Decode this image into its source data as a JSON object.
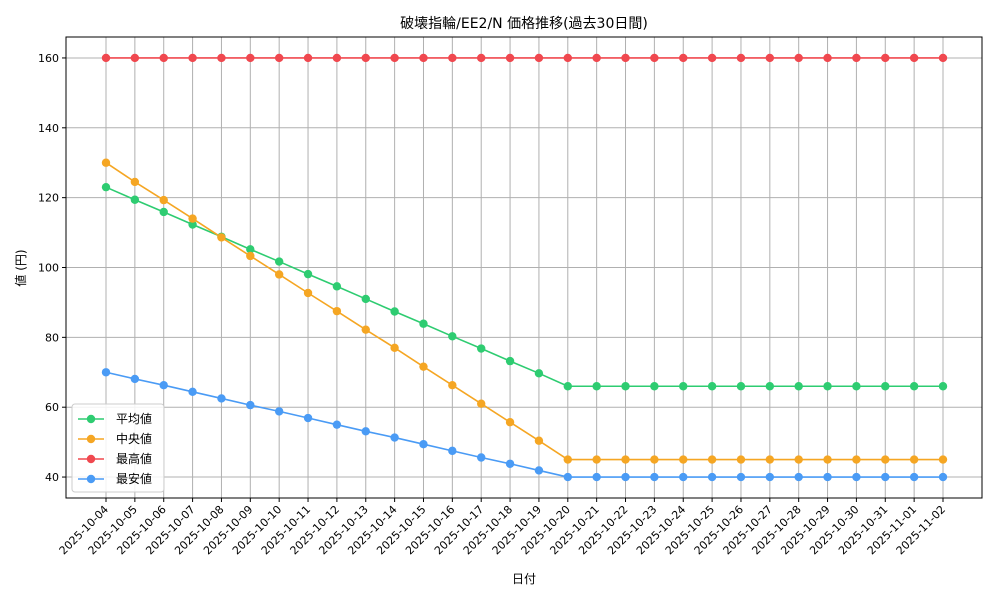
{
  "chart_data": {
    "type": "line",
    "title": "破壊指輪/EE2/N 価格推移(過去30日間)",
    "xlabel": "日付",
    "ylabel": "値 (円)",
    "ylim": [
      34,
      166
    ],
    "yticks": [
      40,
      60,
      80,
      100,
      120,
      140,
      160
    ],
    "grid": true,
    "legend_position": "bottom-left",
    "categories": [
      "2025-10-04",
      "2025-10-05",
      "2025-10-06",
      "2025-10-07",
      "2025-10-08",
      "2025-10-09",
      "2025-10-10",
      "2025-10-11",
      "2025-10-12",
      "2025-10-13",
      "2025-10-14",
      "2025-10-15",
      "2025-10-16",
      "2025-10-17",
      "2025-10-18",
      "2025-10-19",
      "2025-10-20",
      "2025-10-21",
      "2025-10-22",
      "2025-10-23",
      "2025-10-24",
      "2025-10-25",
      "2025-10-26",
      "2025-10-27",
      "2025-10-28",
      "2025-10-29",
      "2025-10-30",
      "2025-10-31",
      "2025-11-01",
      "2025-11-02"
    ],
    "series": [
      {
        "name": "平均値",
        "color": "#2ecc71",
        "values": [
          123,
          119.4,
          115.9,
          112.3,
          108.8,
          105.2,
          101.7,
          98.1,
          94.6,
          91,
          87.4,
          83.9,
          80.3,
          76.8,
          73.2,
          69.7,
          66,
          66,
          66,
          66,
          66,
          66,
          66,
          66,
          66,
          66,
          66,
          66,
          66,
          66
        ]
      },
      {
        "name": "中央値",
        "color": "#f5a623",
        "values": [
          130,
          124.5,
          119.3,
          114,
          108.6,
          103.3,
          98,
          92.7,
          87.5,
          82.2,
          77,
          71.6,
          66.3,
          61,
          55.7,
          50.4,
          45,
          45,
          45,
          45,
          45,
          45,
          45,
          45,
          45,
          45,
          45,
          45,
          45,
          45
        ]
      },
      {
        "name": "最高値",
        "color": "#f0484f",
        "values": [
          160,
          160,
          160,
          160,
          160,
          160,
          160,
          160,
          160,
          160,
          160,
          160,
          160,
          160,
          160,
          160,
          160,
          160,
          160,
          160,
          160,
          160,
          160,
          160,
          160,
          160,
          160,
          160,
          160,
          160
        ]
      },
      {
        "name": "最安値",
        "color": "#4a9bf5",
        "values": [
          70,
          68.1,
          66.3,
          64.4,
          62.5,
          60.6,
          58.8,
          56.9,
          55,
          53.1,
          51.3,
          49.4,
          47.5,
          45.6,
          43.8,
          41.9,
          40,
          40,
          40,
          40,
          40,
          40,
          40,
          40,
          40,
          40,
          40,
          40,
          40,
          40
        ]
      }
    ]
  }
}
